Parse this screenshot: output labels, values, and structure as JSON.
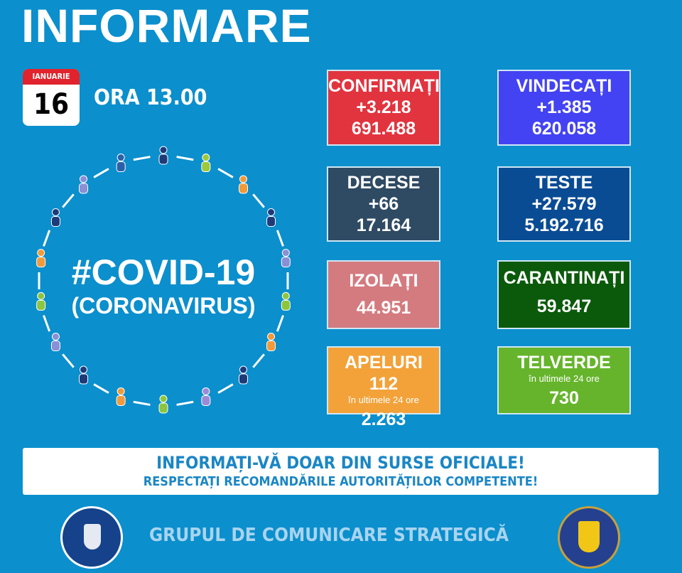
{
  "title": "INFORMARE",
  "date": {
    "month": "IANUARIE",
    "day": "16"
  },
  "time": "ORA 13.00",
  "colors": {
    "background": "#0b8fcd",
    "confirmati": "#e1343f",
    "vindecati": "#4343f3",
    "decese": "#2f4a63",
    "teste": "#0a4c94",
    "izolati": "#d47b80",
    "carantinati": "#0b5a0b",
    "apeluri": "#f2a239",
    "telverde": "#66b42c"
  },
  "cards": {
    "confirmati": {
      "label": "CONFIRMAȚI",
      "delta": "+3.218",
      "total": "691.488"
    },
    "vindecati": {
      "label": "VINDECAȚI",
      "delta": "+1.385",
      "total": "620.058"
    },
    "decese": {
      "label": "DECESE",
      "delta": "+66",
      "total": "17.164"
    },
    "teste": {
      "label": "TESTE",
      "delta": "+27.579",
      "total": "5.192.716"
    },
    "izolati": {
      "label": "IZOLAȚI",
      "total": "44.951"
    },
    "carantinati": {
      "label": "CARANTINAȚI",
      "total": "59.847"
    },
    "apeluri": {
      "label": "APELURI 112",
      "sub": "în ultimele 24 ore",
      "total": "2.263"
    },
    "telverde": {
      "label": "TELVERDE",
      "sub": "în ultimele 24 ore",
      "total": "730"
    }
  },
  "covid": {
    "line1": "#COVID-19",
    "line2": "(CORONAVIRUS)"
  },
  "banner": {
    "line1": "INFORMAȚI-VĂ DOAR DIN SURSE OFICIALE!",
    "line2": "RESPECTAȚI RECOMANDĂRILE AUTORITĂȚILOR COMPETENTE!"
  },
  "footer": "GRUPUL DE COMUNICARE STRATEGICĂ",
  "logos": {
    "left": "GUVERNUL ROMÂNIEI",
    "right": "DEPARTAMENTUL PENTRU SITUAȚII DE URGENȚĂ · M.A.I."
  }
}
